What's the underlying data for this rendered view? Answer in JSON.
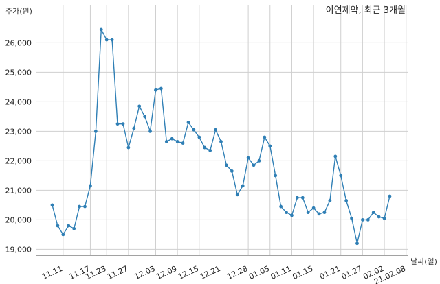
{
  "chart_data": {
    "type": "line",
    "title": "이연제약, 최근 3개월",
    "ylabel": "주가(원)",
    "xlabel": "날짜(일)",
    "ylim": [
      18800,
      26800
    ],
    "yticks": [
      19000,
      20000,
      21000,
      22000,
      23000,
      24000,
      25000,
      26000
    ],
    "ytick_labels": [
      "19,000",
      "20,000",
      "21,000",
      "22,000",
      "23,000",
      "24,000",
      "25,000",
      "26,000"
    ],
    "grid": true,
    "series_color": "#2f7fb5",
    "xtick_labels": [
      "11.11",
      "11.17",
      "11.23",
      "11.27",
      "12.03",
      "12.09",
      "12.15",
      "12.21",
      "12.28",
      "01.05",
      "01.11",
      "01.15",
      "01.21",
      "01.27",
      "02.02",
      "21.02.08"
    ],
    "xtick_positions": [
      2,
      7,
      10,
      14,
      19,
      23,
      27,
      31,
      36,
      40,
      44,
      48,
      53,
      57,
      61,
      65
    ],
    "series": [
      {
        "values": [
          20500,
          19800,
          19500,
          19800,
          19700,
          20450,
          20450,
          21150,
          23000,
          26450,
          26100,
          26100,
          23250,
          23250,
          22450,
          23100,
          23850,
          23500,
          23000,
          24400,
          24450,
          22650,
          22750,
          22650,
          22600,
          23300,
          23050,
          22800,
          22450,
          22350,
          23050,
          22650,
          21850,
          21650,
          20850,
          21150,
          22100,
          21850,
          22000,
          22800,
          22500,
          21500,
          20450,
          20250,
          20150,
          20750,
          20750,
          20250,
          20400,
          20200,
          20250,
          20650,
          22150,
          21500,
          20650,
          20050,
          19200,
          20000,
          20000,
          20250,
          20100,
          20050,
          20800
        ]
      }
    ]
  }
}
